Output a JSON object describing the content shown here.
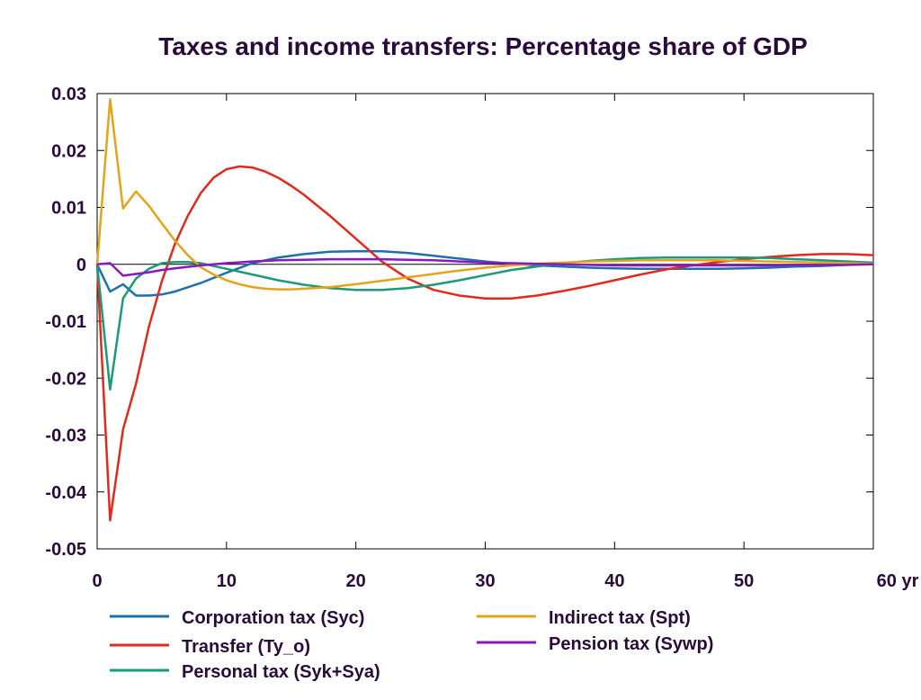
{
  "chart_data": {
    "type": "line",
    "title": "Taxes and income transfers: Percentage share of GDP",
    "x_unit_label": "yr",
    "xlim": [
      0,
      60
    ],
    "ylim": [
      -0.05,
      0.03
    ],
    "x_ticks": [
      0,
      10,
      20,
      30,
      40,
      50,
      60
    ],
    "x_tick_labels": [
      "0",
      "10",
      "20",
      "30",
      "40",
      "50",
      "60 yr"
    ],
    "y_ticks": [
      0.03,
      0.02,
      0.01,
      0,
      -0.01,
      -0.02,
      -0.03,
      -0.04,
      -0.05
    ],
    "y_tick_labels": [
      "0.03",
      "0.02",
      "0.01",
      "0",
      "-0.01",
      "-0.02",
      "-0.03",
      "-0.04",
      "-0.05"
    ],
    "grid": false,
    "legend_position": "bottom",
    "series": [
      {
        "name": "Corporation tax (Syc)",
        "color": "#1f6fad",
        "x": [
          0,
          1,
          2,
          3,
          4,
          5,
          6,
          8,
          10,
          12,
          14,
          16,
          18,
          20,
          22,
          24,
          26,
          28,
          30,
          32,
          34,
          36,
          38,
          40,
          42,
          44,
          46,
          48,
          50,
          52,
          54,
          56,
          58,
          60
        ],
        "y": [
          0,
          -0.0048,
          -0.0035,
          -0.0055,
          -0.0055,
          -0.0053,
          -0.0048,
          -0.0033,
          -0.0015,
          0.0002,
          0.0012,
          0.0018,
          0.0022,
          0.0023,
          0.0023,
          0.002,
          0.0015,
          0.001,
          0.0005,
          0.0001,
          -0.0002,
          -0.0004,
          -0.0006,
          -0.0007,
          -0.0008,
          -0.0008,
          -0.0008,
          -0.0008,
          -0.0007,
          -0.0006,
          -0.0004,
          -0.0003,
          -0.0001,
          0.0001
        ]
      },
      {
        "name": "Transfer (Ty_o)",
        "color": "#e02a1b",
        "x": [
          0,
          1,
          2,
          3,
          4,
          5,
          6,
          7,
          8,
          9,
          10,
          11,
          12,
          13,
          14,
          15,
          16,
          18,
          20,
          22,
          24,
          26,
          28,
          30,
          32,
          34,
          36,
          38,
          40,
          42,
          44,
          46,
          48,
          50,
          52,
          54,
          56,
          58,
          60
        ],
        "y": [
          0,
          -0.045,
          -0.029,
          -0.021,
          -0.011,
          -0.003,
          0.0035,
          0.0085,
          0.0125,
          0.0152,
          0.0167,
          0.0172,
          0.017,
          0.0163,
          0.0152,
          0.0138,
          0.0122,
          0.0085,
          0.0045,
          0.0005,
          -0.0025,
          -0.0045,
          -0.0055,
          -0.006,
          -0.006,
          -0.0055,
          -0.0047,
          -0.0038,
          -0.0028,
          -0.0018,
          -0.0009,
          -0.0002,
          0.0004,
          0.0009,
          0.0013,
          0.0016,
          0.0018,
          0.0018,
          0.0016
        ]
      },
      {
        "name": "Personal tax (Syk+Sya)",
        "color": "#1a9a7a",
        "x": [
          0,
          1,
          2,
          3,
          4,
          5,
          6,
          7,
          8,
          10,
          12,
          14,
          16,
          18,
          20,
          22,
          24,
          26,
          28,
          30,
          32,
          34,
          36,
          38,
          40,
          42,
          44,
          46,
          48,
          50,
          52,
          54,
          56,
          58,
          60
        ],
        "y": [
          0,
          -0.022,
          -0.006,
          -0.0025,
          -0.0008,
          0.0002,
          0.0004,
          0.0004,
          0.0002,
          -0.0008,
          -0.0018,
          -0.0028,
          -0.0036,
          -0.0042,
          -0.0045,
          -0.0045,
          -0.0042,
          -0.0036,
          -0.0028,
          -0.0019,
          -0.001,
          -0.0004,
          0.0002,
          0.0006,
          0.0009,
          0.0011,
          0.0012,
          0.0012,
          0.0012,
          0.0012,
          0.0011,
          0.0009,
          0.0007,
          0.0005,
          0.0003
        ]
      },
      {
        "name": "Indirect tax (Spt)",
        "color": "#e3a418",
        "x": [
          0,
          1,
          2,
          3,
          4,
          5,
          6,
          7,
          8,
          9,
          10,
          11,
          12,
          13,
          14,
          15,
          16,
          18,
          20,
          22,
          24,
          26,
          28,
          30,
          32,
          34,
          36,
          38,
          40,
          42,
          44,
          46,
          48,
          50,
          52,
          54,
          56,
          58,
          60
        ],
        "y": [
          0,
          0.029,
          0.0098,
          0.0128,
          0.0103,
          0.0072,
          0.0042,
          0.0016,
          -0.0005,
          -0.0018,
          -0.0028,
          -0.0035,
          -0.004,
          -0.0043,
          -0.0044,
          -0.0044,
          -0.0043,
          -0.004,
          -0.0035,
          -0.0029,
          -0.0023,
          -0.0017,
          -0.0011,
          -0.0006,
          -0.0002,
          0.0001,
          0.0003,
          0.0005,
          0.0006,
          0.0007,
          0.0007,
          0.0007,
          0.0007,
          0.0006,
          0.0005,
          0.0004,
          0.0003,
          0.0002,
          0.0001
        ]
      },
      {
        "name": "Pension tax (Sywp)",
        "color": "#8a17c0",
        "x": [
          0,
          1,
          2,
          3,
          4,
          5,
          6,
          8,
          10,
          12,
          14,
          16,
          18,
          20,
          22,
          24,
          26,
          28,
          30,
          32,
          34,
          36,
          38,
          40,
          42,
          44,
          46,
          48,
          50,
          52,
          54,
          56,
          58,
          60
        ],
        "y": [
          0,
          0.0002,
          -0.002,
          -0.0017,
          -0.0014,
          -0.001,
          -0.0007,
          -0.0002,
          0.0002,
          0.0005,
          0.0007,
          0.0008,
          0.0009,
          0.0009,
          0.0009,
          0.0008,
          0.0007,
          0.0005,
          0.0003,
          0.0002,
          0.0001,
          0.0,
          -0.0001,
          -0.0002,
          -0.0002,
          -0.0002,
          -0.0002,
          -0.0002,
          -0.0002,
          -0.0002,
          -0.0001,
          -0.0001,
          -0.0001,
          0.0
        ]
      }
    ]
  }
}
